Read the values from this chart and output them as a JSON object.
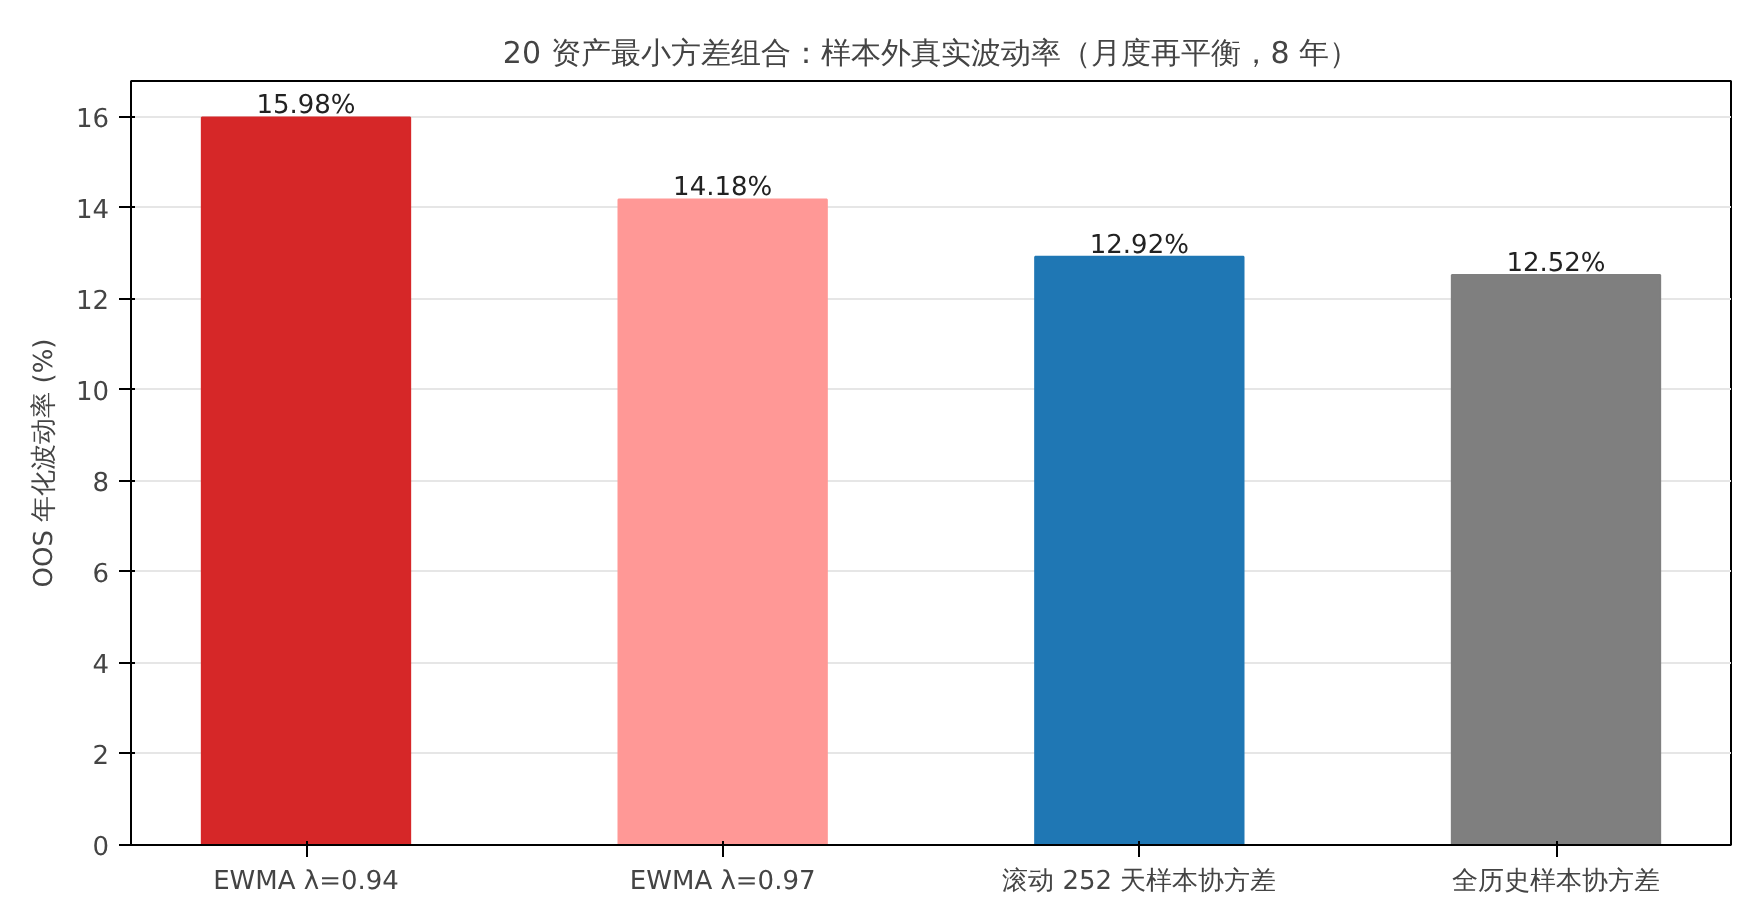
{
  "chart_data": {
    "type": "bar",
    "title": "20 资产最小方差组合：样本外真实波动率（月度再平衡，8 年）",
    "ylabel": "OOS 年化波动率 (%)",
    "categories": [
      "EWMA λ=0.94",
      "EWMA λ=0.97",
      "滚动 252 天样本协方差",
      "全历史样本协方差"
    ],
    "values": [
      15.98,
      14.18,
      12.92,
      12.52
    ],
    "colors": [
      "#d62728",
      "#ff9896",
      "#1f77b4",
      "#7f7f7f"
    ],
    "value_labels": [
      "15.98%",
      "14.18%",
      "12.92%",
      "12.52%"
    ],
    "ylim": [
      0,
      16.78
    ],
    "yticks": [
      0,
      2,
      4,
      6,
      8,
      10,
      12,
      14,
      16
    ],
    "grid": "y"
  }
}
